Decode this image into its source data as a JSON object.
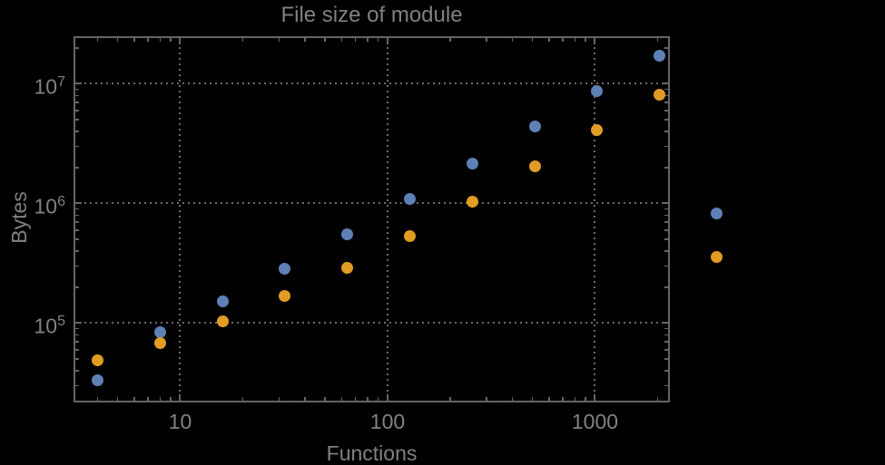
{
  "chart_data": {
    "type": "scatter",
    "title": "File size of module",
    "xlabel": "Functions",
    "ylabel": "Bytes",
    "x_scale": "log",
    "y_scale": "log",
    "x_log_range": [
      0.4858,
      3.3611
    ],
    "y_log_range": [
      4.3371,
      7.3977
    ],
    "x_ticks": [
      {
        "value": 10,
        "label": "10"
      },
      {
        "value": 100,
        "label": "100"
      },
      {
        "value": 1000,
        "label": "1000"
      }
    ],
    "y_ticks": [
      {
        "value": 100000,
        "label_base": "10",
        "label_exponent": "5"
      },
      {
        "value": 1000000,
        "label_base": "10",
        "label_exponent": "6"
      },
      {
        "value": 10000000,
        "label_base": "10",
        "label_exponent": "7"
      }
    ],
    "grid": {
      "style": "dotted",
      "at_major_ticks": true,
      "color": "#6b6b6b"
    },
    "frame_color": "#656565",
    "text_color": "#858585",
    "background": "#000000",
    "marker_diameter_px": 13,
    "series": [
      {
        "name": "series-1-blue",
        "color": "#5e81b5",
        "marker": "circle",
        "points": [
          [
            4,
            33500
          ],
          [
            8,
            84000
          ],
          [
            16,
            151000
          ],
          [
            32,
            287000
          ],
          [
            64,
            548000
          ],
          [
            128,
            1100000
          ],
          [
            256,
            2170000
          ],
          [
            512,
            4370000
          ],
          [
            1024,
            8630000
          ],
          [
            2048,
            17300000
          ]
        ]
      },
      {
        "name": "series-2-orange",
        "color": "#e19c24",
        "marker": "circle",
        "points": [
          [
            4,
            49100
          ],
          [
            8,
            68700
          ],
          [
            16,
            104000
          ],
          [
            32,
            170000
          ],
          [
            64,
            292000
          ],
          [
            128,
            538000
          ],
          [
            256,
            1030000
          ],
          [
            512,
            2060000
          ],
          [
            1024,
            4140000
          ],
          [
            2048,
            8180000
          ]
        ]
      }
    ],
    "legend": {
      "position": "right-center",
      "labels_visible": false,
      "markers": [
        {
          "series": "series-1-blue",
          "color": "#5e81b5"
        },
        {
          "series": "series-2-orange",
          "color": "#e19c24"
        }
      ]
    }
  }
}
